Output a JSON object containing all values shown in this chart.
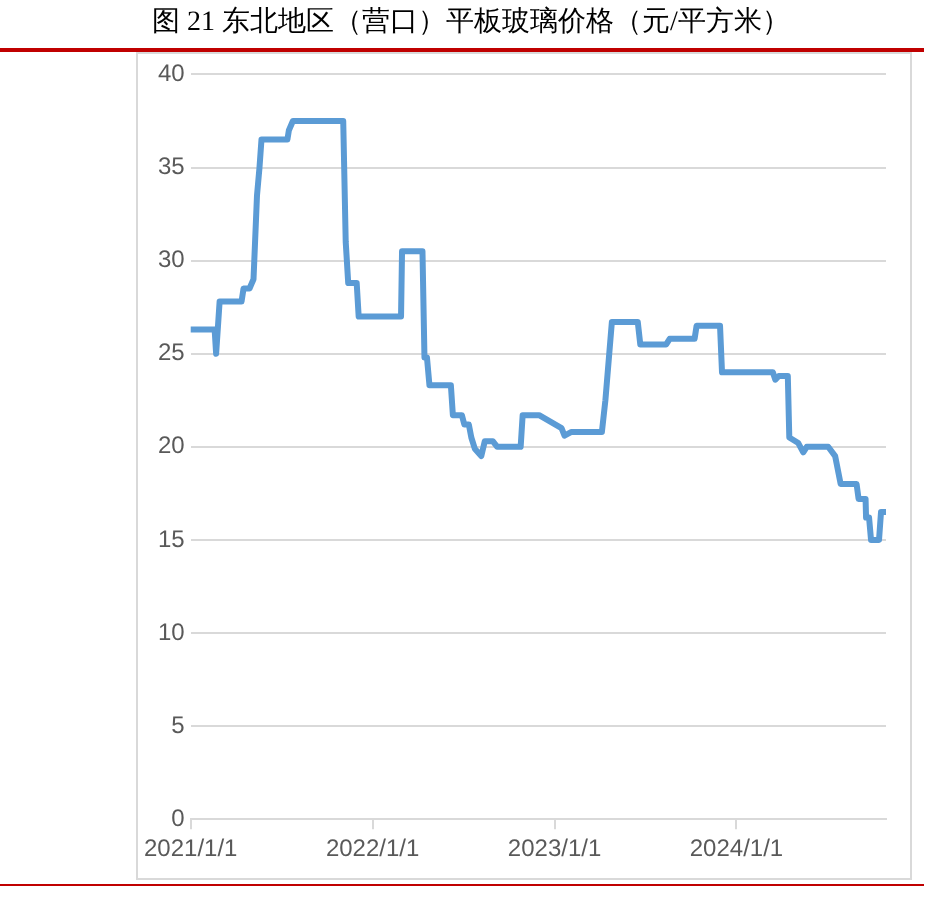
{
  "chart_data": {
    "type": "line",
    "title": "图 21 东北地区（营口）平板玻璃价格（元/平方米）",
    "x": [
      "2021-01-01",
      "2021-02-18",
      "2021-02-21",
      "2021-02-28",
      "2021-04-13",
      "2021-04-17",
      "2021-04-29",
      "2021-05-07",
      "2021-05-14",
      "2021-05-19",
      "2021-05-23",
      "2021-07-14",
      "2021-07-17",
      "2021-07-25",
      "2021-11-03",
      "2021-11-08",
      "2021-11-13",
      "2021-11-30",
      "2021-12-04",
      "2022-02-27",
      "2022-03-01",
      "2022-04-11",
      "2022-04-15",
      "2022-04-20",
      "2022-04-25",
      "2022-06-07",
      "2022-06-11",
      "2022-06-29",
      "2022-07-04",
      "2022-07-13",
      "2022-07-18",
      "2022-07-25",
      "2022-08-07",
      "2022-08-14",
      "2022-08-30",
      "2022-09-08",
      "2022-10-25",
      "2022-10-29",
      "2022-12-01",
      "2023-01-15",
      "2023-01-21",
      "2023-02-04",
      "2023-04-06",
      "2023-04-13",
      "2023-04-26",
      "2023-06-17",
      "2023-06-22",
      "2023-08-13",
      "2023-08-20",
      "2023-10-09",
      "2023-10-13",
      "2023-11-29",
      "2023-12-03",
      "2024-03-14",
      "2024-03-19",
      "2024-03-26",
      "2024-04-13",
      "2024-04-16",
      "2024-05-04",
      "2024-05-14",
      "2024-05-21",
      "2024-07-03",
      "2024-07-17",
      "2024-07-28",
      "2024-08-29",
      "2024-09-02",
      "2024-09-16",
      "2024-09-17",
      "2024-09-23",
      "2024-09-27",
      "2024-10-13",
      "2024-10-17",
      "2024-10-27"
    ],
    "series": [
      {
        "color": "#5b9bd5",
        "values": [
          26.3,
          26.3,
          25,
          27.8,
          27.8,
          28.5,
          28.5,
          29,
          33.5,
          35,
          36.5,
          36.5,
          37,
          37.5,
          37.5,
          31,
          28.8,
          28.8,
          27,
          27,
          30.5,
          30.5,
          24.8,
          24.8,
          23.3,
          23.3,
          21.7,
          21.7,
          21.2,
          21.2,
          20.5,
          19.9,
          19.5,
          20.3,
          20.3,
          20,
          20,
          21.7,
          21.7,
          21,
          20.6,
          20.8,
          20.8,
          22.5,
          26.7,
          26.7,
          25.5,
          25.5,
          25.8,
          25.8,
          26.5,
          26.5,
          24,
          24,
          23.6,
          23.8,
          23.8,
          20.5,
          20.2,
          19.7,
          20,
          20,
          19.5,
          18,
          18,
          17.2,
          17.2,
          16.2,
          16.2,
          15,
          15,
          16.5,
          16.5
        ]
      }
    ],
    "xlim": [
      "2021-01-01",
      "2024-10-27"
    ],
    "xticks": [
      {
        "value": "2021-01-01",
        "label": "2021/1/1"
      },
      {
        "value": "2022-01-01",
        "label": "2022/1/1"
      },
      {
        "value": "2023-01-01",
        "label": "2023/1/1"
      },
      {
        "value": "2024-01-01",
        "label": "2024/1/1"
      }
    ],
    "ylim": [
      0,
      40
    ],
    "yticks": [
      0,
      5,
      10,
      15,
      20,
      25,
      30,
      35,
      40
    ],
    "grid": "y",
    "legend": false,
    "marker": "none",
    "line_style": "solid"
  }
}
